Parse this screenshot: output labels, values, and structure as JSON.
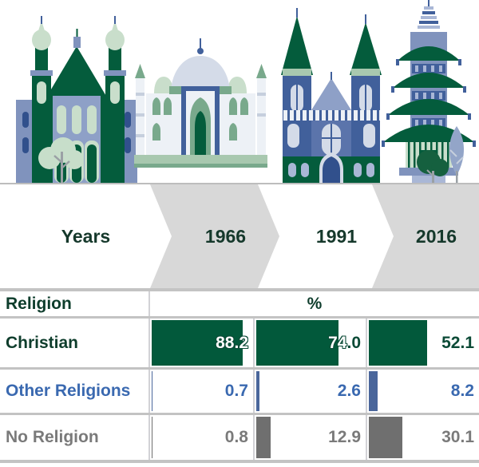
{
  "palette": {
    "bar_green": "#02593B",
    "bar_blue": "#4A669B",
    "bar_gray": "#6F6F6F",
    "text_dark_green": "#0E3D2C",
    "text_blue": "#3A69B0",
    "text_gray": "#7A7A7A",
    "band_gray": "#D8D8D8",
    "border_gray": "#C3C3C3"
  },
  "illustration": {
    "icons": [
      "mosque-icon",
      "taj-mahal-icon",
      "cathedral-icon",
      "pagoda-icon",
      "tree-icon"
    ]
  },
  "timeline": {
    "label": "Years",
    "years": [
      "1966",
      "1991",
      "2016"
    ]
  },
  "table": {
    "religion_header": "Religion",
    "percent_header": "%",
    "rows": [
      {
        "label": "Christian",
        "cells": [
          {
            "display": "88.2",
            "on": "88.2",
            "off": ""
          },
          {
            "display": "74.0",
            "on": "74",
            "off": ".0"
          },
          {
            "display": "52.1",
            "on": "",
            "off": "52.1"
          }
        ]
      },
      {
        "label": "Other Religions",
        "cells": [
          {
            "display": "0.7",
            "on": "",
            "off": "0.7"
          },
          {
            "display": "2.6",
            "on": "",
            "off": "2.6"
          },
          {
            "display": "8.2",
            "on": "",
            "off": "8.2"
          }
        ]
      },
      {
        "label": "No Religion",
        "cells": [
          {
            "display": "0.8",
            "on": "",
            "off": "0.8"
          },
          {
            "display": "12.9",
            "on": "",
            "off": "12.9"
          },
          {
            "display": "30.1",
            "on": "",
            "off": "30.1"
          }
        ]
      }
    ]
  },
  "chart_data": {
    "type": "table",
    "title": "Religion by year (%)",
    "categories_label": "Years",
    "categories": [
      "1966",
      "1991",
      "2016"
    ],
    "unit": "%",
    "value_range": [
      0,
      100
    ],
    "series": [
      {
        "name": "Christian",
        "values": [
          88.2,
          74.0,
          52.1
        ],
        "color": "#02593B"
      },
      {
        "name": "Other Religions",
        "values": [
          0.7,
          2.6,
          8.2
        ],
        "color": "#4A669B"
      },
      {
        "name": "No Religion",
        "values": [
          0.8,
          12.9,
          30.1
        ],
        "color": "#6F6F6F"
      }
    ],
    "legend_position": "row-labels",
    "grid": false
  }
}
